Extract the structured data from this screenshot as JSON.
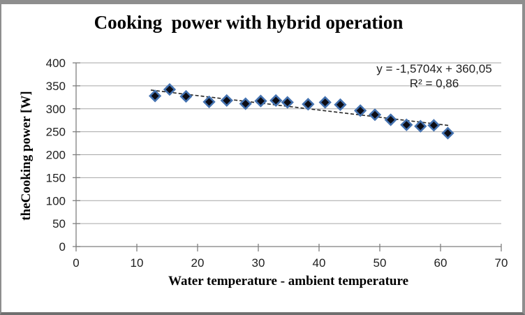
{
  "chart_data": {
    "type": "scatter",
    "title": "Cooking  power with hybrid operation",
    "xlabel": "Water temperature - ambient temperature",
    "ylabel": "theCooking power [W]",
    "xlim": [
      0,
      70
    ],
    "ylim": [
      0,
      400
    ],
    "x_ticks": [
      0,
      10,
      20,
      30,
      40,
      50,
      60,
      70
    ],
    "y_ticks": [
      0,
      50,
      100,
      150,
      200,
      250,
      300,
      350,
      400
    ],
    "grid": "horizontal",
    "legend": "none",
    "series": [
      {
        "name": "cooking power",
        "marker": "diamond",
        "x": [
          13,
          15.4,
          18.1,
          21.9,
          24.8,
          27.9,
          30.4,
          32.9,
          34.8,
          38.2,
          41,
          43.5,
          46.8,
          49.2,
          51.8,
          54.4,
          56.7,
          58.9,
          61.2
        ],
        "y": [
          328,
          342,
          327,
          315,
          318,
          311,
          317,
          318,
          314,
          310,
          314,
          309,
          296,
          287,
          276,
          265,
          262,
          264,
          247
        ]
      }
    ],
    "trendline": {
      "type": "linear",
      "slope": -1.5704,
      "intercept": 360.05,
      "x_start": 12.3,
      "x_end": 61.3,
      "equation": "y = -1,5704x + 360,05",
      "r_squared": "R² = 0,86"
    },
    "colors": {
      "marker_fill": "#0c0c14",
      "marker_stroke": "#4472b0",
      "trendline": "#262626",
      "gridline": "#a6a6a6",
      "axis": "#7f7f7f",
      "tick_text": "#1f1f1f",
      "frame": "#8e8e8e"
    }
  }
}
